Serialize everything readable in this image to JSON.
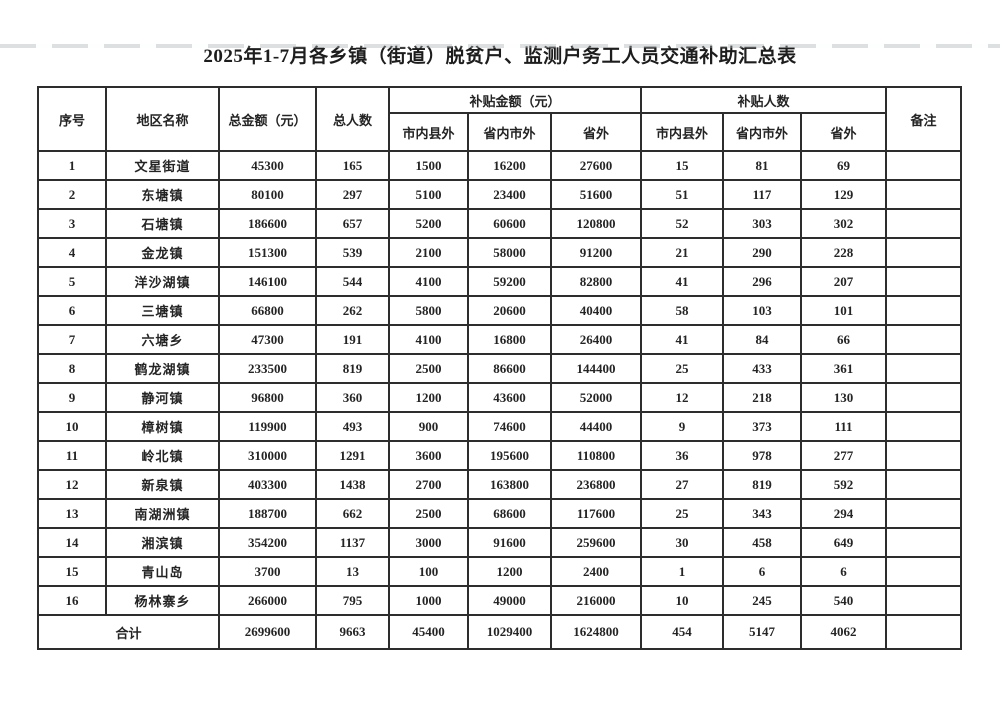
{
  "page": {
    "title": "2025年1-7月各乡镇（街道）脱贫户、监测户务工人员交通补助汇总表"
  },
  "colors": {
    "ink": "#242424",
    "border": "#2d2d2d",
    "paper": "#ffffff"
  },
  "table": {
    "header": {
      "seq": "序号",
      "region": "地区名称",
      "total_amount": "总金额（元）",
      "total_people": "总人数",
      "subsidy_amount_group": "补贴金额（元）",
      "subsidy_people_group": "补贴人数",
      "within_city": "市内县外",
      "within_province": "省内市外",
      "outside_province": "省外",
      "remark": "备注"
    },
    "rows": [
      {
        "seq": "1",
        "region": "文星街道",
        "total_amount": "45300",
        "total_people": "165",
        "amt_within_city": "1500",
        "amt_within_province": "16200",
        "amt_outside_province": "27600",
        "ppl_within_city": "15",
        "ppl_within_province": "81",
        "ppl_outside_province": "69",
        "remark": ""
      },
      {
        "seq": "2",
        "region": "东塘镇",
        "total_amount": "80100",
        "total_people": "297",
        "amt_within_city": "5100",
        "amt_within_province": "23400",
        "amt_outside_province": "51600",
        "ppl_within_city": "51",
        "ppl_within_province": "117",
        "ppl_outside_province": "129",
        "remark": ""
      },
      {
        "seq": "3",
        "region": "石塘镇",
        "total_amount": "186600",
        "total_people": "657",
        "amt_within_city": "5200",
        "amt_within_province": "60600",
        "amt_outside_province": "120800",
        "ppl_within_city": "52",
        "ppl_within_province": "303",
        "ppl_outside_province": "302",
        "remark": ""
      },
      {
        "seq": "4",
        "region": "金龙镇",
        "total_amount": "151300",
        "total_people": "539",
        "amt_within_city": "2100",
        "amt_within_province": "58000",
        "amt_outside_province": "91200",
        "ppl_within_city": "21",
        "ppl_within_province": "290",
        "ppl_outside_province": "228",
        "remark": ""
      },
      {
        "seq": "5",
        "region": "洋沙湖镇",
        "total_amount": "146100",
        "total_people": "544",
        "amt_within_city": "4100",
        "amt_within_province": "59200",
        "amt_outside_province": "82800",
        "ppl_within_city": "41",
        "ppl_within_province": "296",
        "ppl_outside_province": "207",
        "remark": ""
      },
      {
        "seq": "6",
        "region": "三塘镇",
        "total_amount": "66800",
        "total_people": "262",
        "amt_within_city": "5800",
        "amt_within_province": "20600",
        "amt_outside_province": "40400",
        "ppl_within_city": "58",
        "ppl_within_province": "103",
        "ppl_outside_province": "101",
        "remark": ""
      },
      {
        "seq": "7",
        "region": "六塘乡",
        "total_amount": "47300",
        "total_people": "191",
        "amt_within_city": "4100",
        "amt_within_province": "16800",
        "amt_outside_province": "26400",
        "ppl_within_city": "41",
        "ppl_within_province": "84",
        "ppl_outside_province": "66",
        "remark": ""
      },
      {
        "seq": "8",
        "region": "鹤龙湖镇",
        "total_amount": "233500",
        "total_people": "819",
        "amt_within_city": "2500",
        "amt_within_province": "86600",
        "amt_outside_province": "144400",
        "ppl_within_city": "25",
        "ppl_within_province": "433",
        "ppl_outside_province": "361",
        "remark": ""
      },
      {
        "seq": "9",
        "region": "静河镇",
        "total_amount": "96800",
        "total_people": "360",
        "amt_within_city": "1200",
        "amt_within_province": "43600",
        "amt_outside_province": "52000",
        "ppl_within_city": "12",
        "ppl_within_province": "218",
        "ppl_outside_province": "130",
        "remark": ""
      },
      {
        "seq": "10",
        "region": "樟树镇",
        "total_amount": "119900",
        "total_people": "493",
        "amt_within_city": "900",
        "amt_within_province": "74600",
        "amt_outside_province": "44400",
        "ppl_within_city": "9",
        "ppl_within_province": "373",
        "ppl_outside_province": "111",
        "remark": ""
      },
      {
        "seq": "11",
        "region": "岭北镇",
        "total_amount": "310000",
        "total_people": "1291",
        "amt_within_city": "3600",
        "amt_within_province": "195600",
        "amt_outside_province": "110800",
        "ppl_within_city": "36",
        "ppl_within_province": "978",
        "ppl_outside_province": "277",
        "remark": ""
      },
      {
        "seq": "12",
        "region": "新泉镇",
        "total_amount": "403300",
        "total_people": "1438",
        "amt_within_city": "2700",
        "amt_within_province": "163800",
        "amt_outside_province": "236800",
        "ppl_within_city": "27",
        "ppl_within_province": "819",
        "ppl_outside_province": "592",
        "remark": ""
      },
      {
        "seq": "13",
        "region": "南湖洲镇",
        "total_amount": "188700",
        "total_people": "662",
        "amt_within_city": "2500",
        "amt_within_province": "68600",
        "amt_outside_province": "117600",
        "ppl_within_city": "25",
        "ppl_within_province": "343",
        "ppl_outside_province": "294",
        "remark": ""
      },
      {
        "seq": "14",
        "region": "湘滨镇",
        "total_amount": "354200",
        "total_people": "1137",
        "amt_within_city": "3000",
        "amt_within_province": "91600",
        "amt_outside_province": "259600",
        "ppl_within_city": "30",
        "ppl_within_province": "458",
        "ppl_outside_province": "649",
        "remark": ""
      },
      {
        "seq": "15",
        "region": "青山岛",
        "total_amount": "3700",
        "total_people": "13",
        "amt_within_city": "100",
        "amt_within_province": "1200",
        "amt_outside_province": "2400",
        "ppl_within_city": "1",
        "ppl_within_province": "6",
        "ppl_outside_province": "6",
        "remark": ""
      },
      {
        "seq": "16",
        "region": "杨林寨乡",
        "total_amount": "266000",
        "total_people": "795",
        "amt_within_city": "1000",
        "amt_within_province": "49000",
        "amt_outside_province": "216000",
        "ppl_within_city": "10",
        "ppl_within_province": "245",
        "ppl_outside_province": "540",
        "remark": ""
      }
    ],
    "total": {
      "label": "合计",
      "total_amount": "2699600",
      "total_people": "9663",
      "amt_within_city": "45400",
      "amt_within_province": "1029400",
      "amt_outside_province": "1624800",
      "ppl_within_city": "454",
      "ppl_within_province": "5147",
      "ppl_outside_province": "4062",
      "remark": ""
    }
  }
}
